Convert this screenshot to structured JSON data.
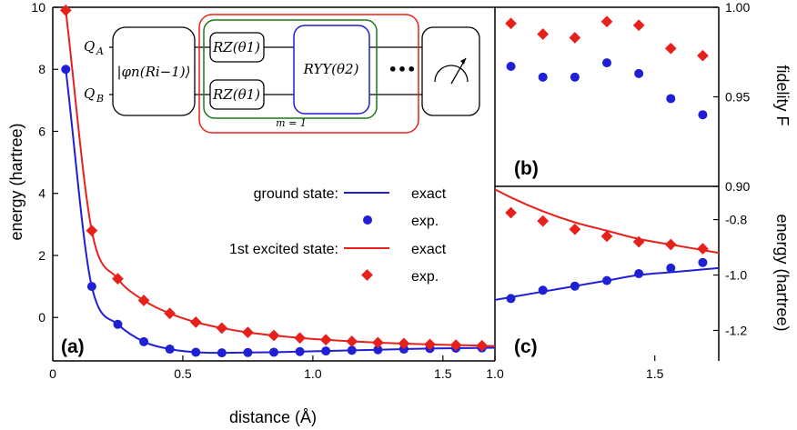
{
  "colors": {
    "ground": "#1f1fd6",
    "excited": "#e8201c",
    "green": "#1a7a1a"
  },
  "chart_data": [
    {
      "panel": "(a)",
      "type": "line",
      "xlabel": "distance (Å)",
      "ylabel": "energy (hartree)",
      "xlim": [
        0,
        1.7
      ],
      "ylim": [
        -1.4,
        10
      ],
      "xticks": [
        0,
        0.5,
        1.0,
        1.5
      ],
      "xtick_labels": [
        "0",
        "0.5",
        "1.0",
        "1.5"
      ],
      "yticks": [
        0,
        2,
        4,
        6,
        8,
        10
      ],
      "ytick_labels": [
        "0",
        "2",
        "4",
        "6",
        "8",
        "10"
      ],
      "legend": {
        "ground_label": "ground state:",
        "excited_label": "1st excited state:",
        "exact_label": "exact",
        "exp_label": "exp."
      },
      "series": [
        {
          "name": "ground state exp.",
          "marker": "circle",
          "x": [
            0.05,
            0.15,
            0.25,
            0.35,
            0.45,
            0.55,
            0.65,
            0.75,
            0.85,
            0.95,
            1.05,
            1.15,
            1.25,
            1.35,
            1.45,
            1.55,
            1.65
          ],
          "y": [
            8.0,
            1.0,
            -0.22,
            -0.78,
            -1.02,
            -1.12,
            -1.14,
            -1.13,
            -1.12,
            -1.1,
            -1.08,
            -1.06,
            -1.04,
            -1.02,
            -1.0,
            -0.99,
            -0.98
          ]
        },
        {
          "name": "1st excited state exp.",
          "marker": "diamond",
          "x": [
            0.05,
            0.15,
            0.25,
            0.35,
            0.45,
            0.55,
            0.65,
            0.75,
            0.85,
            0.95,
            1.05,
            1.15,
            1.25,
            1.35,
            1.45,
            1.55,
            1.65
          ],
          "y": [
            9.9,
            2.8,
            1.25,
            0.55,
            0.13,
            -0.15,
            -0.34,
            -0.48,
            -0.58,
            -0.66,
            -0.72,
            -0.77,
            -0.81,
            -0.84,
            -0.87,
            -0.89,
            -0.91
          ]
        }
      ]
    },
    {
      "panel": "(b)",
      "type": "scatter",
      "ylabel": "fidelity F",
      "ylim": [
        0.9,
        1.0
      ],
      "yticks": [
        0.9,
        0.95,
        1.0
      ],
      "ytick_labels": [
        "0.90",
        "0.95",
        "1.00"
      ],
      "series": [
        {
          "name": "ground state",
          "marker": "circle",
          "x": [
            1.05,
            1.15,
            1.25,
            1.35,
            1.45,
            1.55,
            1.65
          ],
          "y": [
            0.967,
            0.961,
            0.961,
            0.969,
            0.963,
            0.949,
            0.94
          ]
        },
        {
          "name": "1st excited state",
          "marker": "diamond",
          "x": [
            1.05,
            1.15,
            1.25,
            1.35,
            1.45,
            1.55,
            1.65
          ],
          "y": [
            0.991,
            0.985,
            0.983,
            0.992,
            0.99,
            0.977,
            0.973
          ]
        }
      ]
    },
    {
      "panel": "(c)",
      "type": "line",
      "ylabel": "energy (hartree)",
      "xlim": [
        1.0,
        1.7
      ],
      "ylim": [
        -1.31,
        -0.68
      ],
      "xticks": [
        1.0,
        1.5
      ],
      "xtick_labels": [
        "1.0",
        "1.5"
      ],
      "yticks": [
        -1.2,
        -1.0,
        -0.8
      ],
      "ytick_labels": [
        "-1.2",
        "-1.0",
        "-0.8"
      ],
      "series": [
        {
          "name": "ground state exp.",
          "marker": "circle",
          "x": [
            1.05,
            1.15,
            1.25,
            1.35,
            1.45,
            1.55,
            1.65
          ],
          "y": [
            -1.085,
            -1.055,
            -1.04,
            -1.02,
            -0.995,
            -0.975,
            -0.955
          ]
        },
        {
          "name": "1st excited state exp.",
          "marker": "diamond",
          "x": [
            1.05,
            1.15,
            1.25,
            1.35,
            1.45,
            1.55,
            1.65
          ],
          "y": [
            -0.775,
            -0.805,
            -0.835,
            -0.86,
            -0.88,
            -0.89,
            -0.905
          ]
        }
      ]
    }
  ],
  "circuit": {
    "qa": "Q",
    "qa_sub": "A",
    "qb": "Q",
    "qb_sub": "B",
    "init_gate": "|φn(Ri−1)⟩",
    "rz_gate": "RZ(θ1)",
    "ryy_gate": "RYY(θ2)",
    "repeat_label": "m = 1",
    "ellipsis": "•••"
  }
}
